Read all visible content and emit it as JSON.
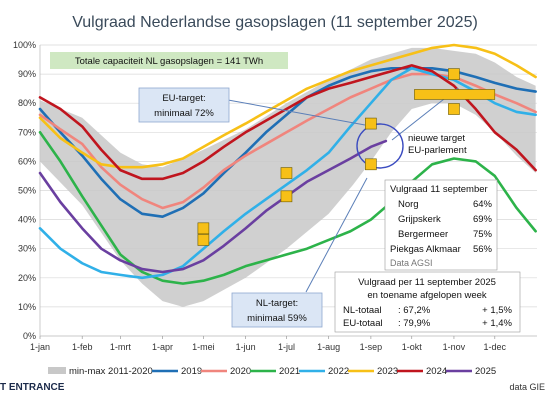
{
  "chart_data": {
    "type": "line",
    "title": "Vulgraad Nederlandse gasopslagen (11 september 2025)",
    "ylim": [
      0,
      100
    ],
    "y_ticks": [
      "0%",
      "10%",
      "20%",
      "30%",
      "40%",
      "50%",
      "60%",
      "70%",
      "80%",
      "90%",
      "100%"
    ],
    "x_ticks": [
      "1-jan",
      "1-feb",
      "1-mrt",
      "1-apr",
      "1-mei",
      "1-jun",
      "1-jul",
      "1-aug",
      "1-sep",
      "1-okt",
      "1-nov",
      "1-dec"
    ],
    "x_tick_days": [
      0,
      31,
      59,
      90,
      120,
      151,
      181,
      212,
      243,
      273,
      304,
      334
    ],
    "band": {
      "name": "min-max 2011-2020",
      "color": "#c8c8c8",
      "x": [
        0,
        31,
        59,
        75,
        90,
        105,
        120,
        151,
        181,
        212,
        230,
        243,
        258,
        273,
        288,
        304,
        320,
        334,
        350,
        364
      ],
      "lower": [
        60,
        45,
        26,
        18,
        12,
        10,
        12,
        20,
        30,
        42,
        52,
        60,
        70,
        78,
        80,
        80,
        76,
        70,
        62,
        56
      ],
      "upper": [
        81,
        75,
        63,
        59,
        58,
        61,
        64,
        71,
        80,
        88,
        92,
        95,
        97,
        99,
        99,
        98,
        97,
        94,
        89,
        86
      ]
    },
    "series": [
      {
        "name": "2019",
        "color": "#1f6fb5",
        "x": [
          0,
          15,
          31,
          45,
          59,
          75,
          90,
          105,
          120,
          135,
          151,
          166,
          181,
          196,
          212,
          228,
          243,
          258,
          273,
          288,
          304,
          320,
          334,
          350,
          364
        ],
        "y": [
          78,
          70,
          62,
          54,
          47,
          42,
          41,
          44,
          49,
          56,
          63,
          70,
          76,
          82,
          86,
          89,
          91,
          92,
          92,
          92,
          91,
          89,
          87,
          85,
          84
        ]
      },
      {
        "name": "2020",
        "color": "#f0857d",
        "x": [
          0,
          15,
          31,
          45,
          59,
          75,
          90,
          105,
          120,
          135,
          151,
          166,
          181,
          196,
          212,
          228,
          243,
          258,
          273,
          288,
          304,
          320,
          334,
          350,
          364
        ],
        "y": [
          76,
          71,
          66,
          58,
          52,
          47,
          44,
          46,
          51,
          57,
          62,
          66,
          70,
          74,
          78,
          82,
          85,
          88,
          90,
          90,
          89,
          86,
          83,
          80,
          77
        ]
      },
      {
        "name": "2021",
        "color": "#2db34a",
        "x": [
          0,
          15,
          31,
          45,
          59,
          75,
          90,
          105,
          120,
          135,
          151,
          166,
          181,
          196,
          212,
          228,
          243,
          258,
          273,
          288,
          304,
          320,
          334,
          350,
          364
        ],
        "y": [
          70,
          60,
          48,
          38,
          28,
          22,
          19,
          18,
          19,
          21,
          24,
          26,
          28,
          30,
          33,
          36,
          40,
          46,
          53,
          59,
          61,
          60,
          55,
          44,
          36
        ]
      },
      {
        "name": "2022",
        "color": "#30b0e8",
        "x": [
          0,
          15,
          31,
          45,
          59,
          75,
          90,
          105,
          120,
          135,
          151,
          166,
          181,
          196,
          212,
          228,
          243,
          258,
          273,
          288,
          304,
          320,
          334,
          350,
          364
        ],
        "y": [
          37,
          30,
          25,
          22,
          21,
          20,
          21,
          24,
          30,
          36,
          42,
          47,
          52,
          57,
          63,
          72,
          80,
          88,
          92,
          90,
          88,
          84,
          80,
          77,
          76
        ]
      },
      {
        "name": "2023",
        "color": "#f7c017",
        "x": [
          0,
          15,
          31,
          45,
          59,
          75,
          90,
          105,
          120,
          135,
          151,
          166,
          181,
          196,
          212,
          228,
          243,
          258,
          273,
          288,
          304,
          320,
          334,
          350,
          364
        ],
        "y": [
          75,
          68,
          63,
          59,
          58,
          58,
          59,
          61,
          65,
          69,
          73,
          77,
          81,
          85,
          88,
          91,
          93,
          95,
          97,
          99,
          100,
          99,
          97,
          93,
          89
        ]
      },
      {
        "name": "2024",
        "color": "#c0151e",
        "x": [
          0,
          15,
          31,
          45,
          59,
          75,
          90,
          105,
          120,
          135,
          151,
          166,
          181,
          196,
          212,
          228,
          243,
          258,
          273,
          288,
          304,
          320,
          334,
          350,
          364
        ],
        "y": [
          82,
          78,
          72,
          64,
          57,
          54,
          54,
          56,
          60,
          65,
          70,
          74,
          78,
          82,
          85,
          87,
          89,
          91,
          93,
          91,
          86,
          78,
          70,
          64,
          57
        ]
      },
      {
        "name": "2025",
        "color": "#6a3fa0",
        "x": [
          0,
          15,
          31,
          45,
          59,
          75,
          90,
          105,
          120,
          135,
          151,
          166,
          181,
          196,
          212,
          228,
          243,
          254
        ],
        "y": [
          56,
          46,
          37,
          30,
          26,
          23,
          22,
          23,
          26,
          31,
          37,
          43,
          48,
          53,
          57,
          61,
          65,
          67
        ]
      }
    ],
    "markers": {
      "color": "#f7c017",
      "points": [
        {
          "x": 120,
          "y": 37
        },
        {
          "x": 120,
          "y": 33
        },
        {
          "x": 181,
          "y": 56
        },
        {
          "x": 181,
          "y": 48
        },
        {
          "x": 243,
          "y": 73
        },
        {
          "x": 243,
          "y": 59
        },
        {
          "x": 304,
          "y": 90
        },
        {
          "x": 304,
          "y": 78
        }
      ],
      "target_bar": {
        "x1": 275,
        "x2": 334,
        "y": 83
      }
    },
    "annotations": {
      "capacity": "Totale capaciteit NL gasopslagen = 141 TWh",
      "eu_target_line1": "EU-target:",
      "eu_target_line2": "minimaal 72%",
      "nl_target_line1": "NL-target:",
      "nl_target_line2": "minimaal 59%",
      "new_target_line1": "nieuwe target",
      "new_target_line2": "EU-parlement"
    },
    "fill_table": {
      "title": "Vulgraad 11 september",
      "rows": [
        {
          "name": "Norg",
          "value": "64%"
        },
        {
          "name": "Grijpskerk",
          "value": "69%"
        },
        {
          "name": "Bergermeer",
          "value": "75%"
        },
        {
          "name": "Piekgas Alkmaar",
          "value": "56%"
        }
      ],
      "source": "Data AGSI"
    },
    "summary_table": {
      "title_line1": "Vulgraad per 11 september 2025",
      "title_line2": "en toename afgelopen week",
      "rows": [
        {
          "name": "NL-totaal",
          "value": ":  67,2%",
          "change": "+ 1,5%"
        },
        {
          "name": "EU-totaal",
          "value": ":  79,9%",
          "change": "+ 1,4%"
        }
      ]
    },
    "legend": [
      "min-max 2011-2020",
      "2019",
      "2020",
      "2021",
      "2022",
      "2023",
      "2024",
      "2025"
    ],
    "logo": "T ENTRANCE",
    "source": "data GIE"
  }
}
